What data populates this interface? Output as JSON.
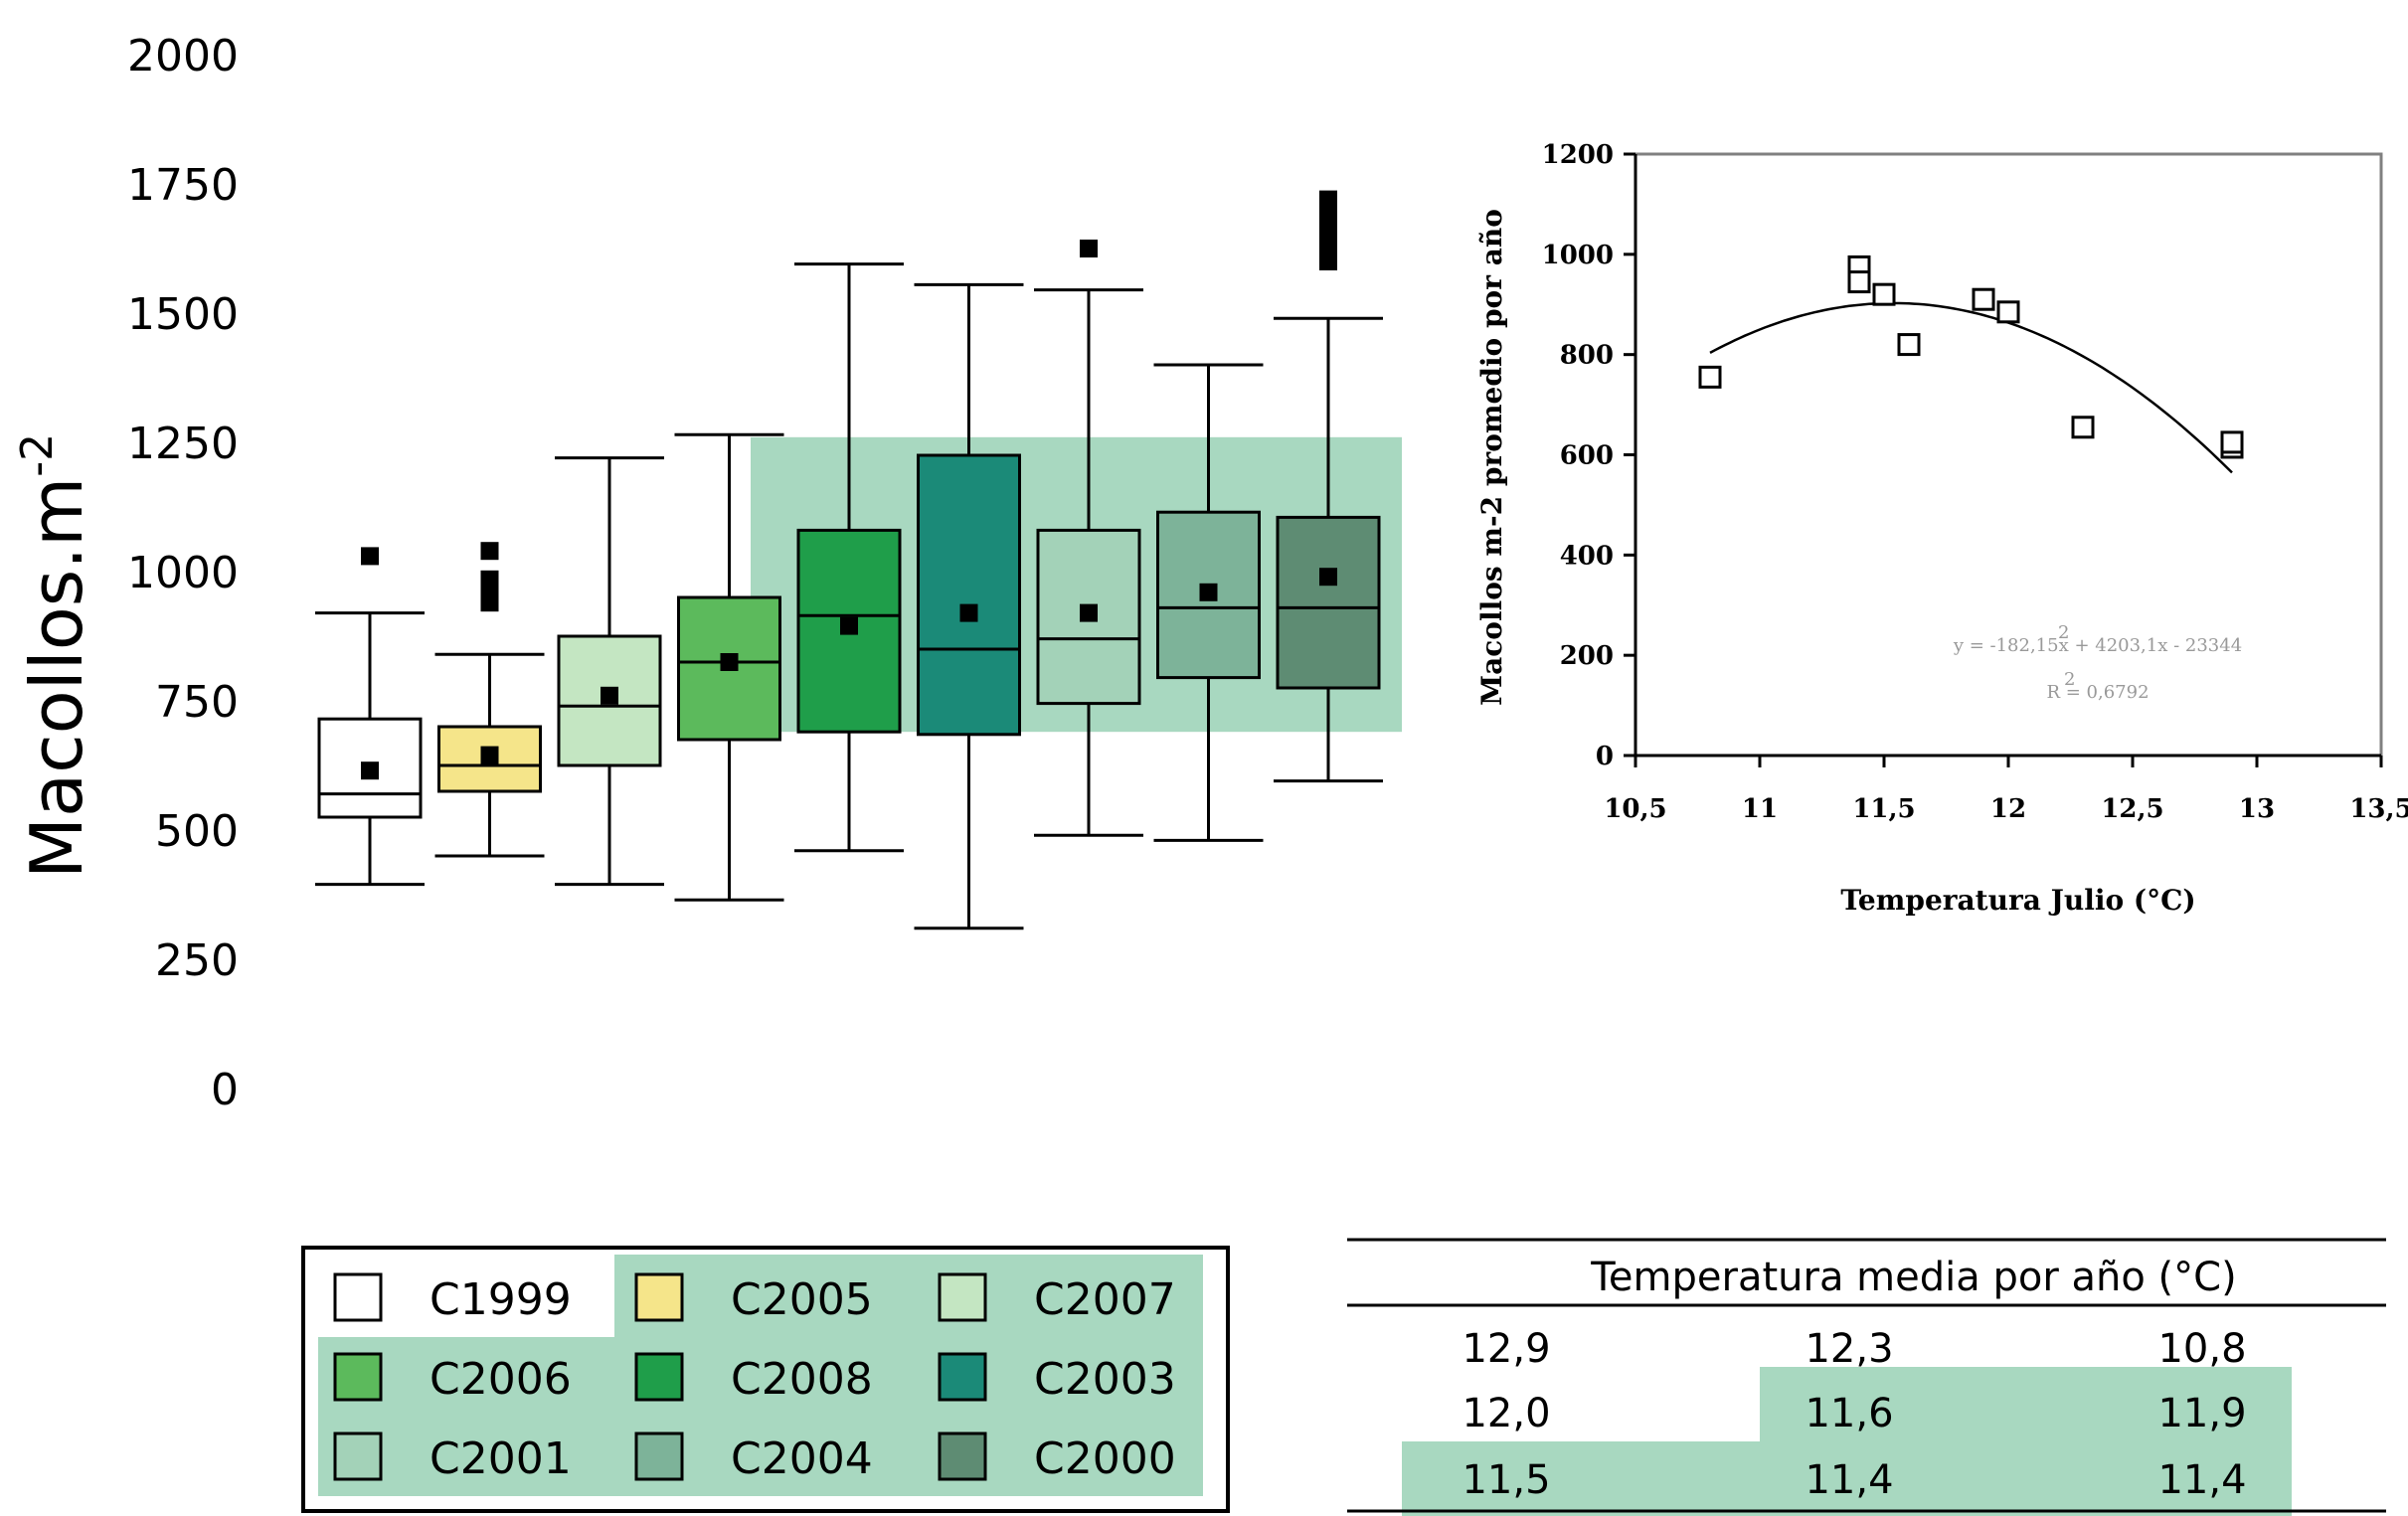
{
  "chart_data": [
    {
      "type": "box",
      "ylabel": "Macollos.m-2",
      "ylabel_main": "Macollos.m",
      "ylabel_sup": "-2",
      "ylim": [
        0,
        2000
      ],
      "yticks": [
        "0",
        "250",
        "500",
        "750",
        "1000",
        "1250",
        "1500",
        "1750",
        "2000"
      ],
      "grid": false,
      "highlight_range": [
        690,
        1260
      ],
      "boxes": [
        {
          "name": "C1999",
          "color": "#ffffff",
          "whisker_low": 395,
          "q1": 525,
          "median": 570,
          "q3": 715,
          "whisker_high": 920,
          "mean": 615,
          "outliers": [
            1030
          ]
        },
        {
          "name": "C2005",
          "color": "#f5e58a",
          "whisker_low": 450,
          "q1": 575,
          "median": 625,
          "q3": 700,
          "whisker_high": 840,
          "mean": 645,
          "outliers": [
            940,
            965,
            985,
            1040
          ]
        },
        {
          "name": "C2007",
          "color": "#c4e6c2",
          "whisker_low": 395,
          "q1": 625,
          "median": 740,
          "q3": 875,
          "whisker_high": 1220,
          "mean": 760,
          "outliers": []
        },
        {
          "name": "C2006",
          "color": "#5cba5c",
          "whisker_low": 365,
          "q1": 675,
          "median": 825,
          "q3": 950,
          "whisker_high": 1265,
          "mean": 825,
          "outliers": []
        },
        {
          "name": "C2008",
          "color": "#1f9e4a",
          "whisker_low": 460,
          "q1": 690,
          "median": 915,
          "q3": 1080,
          "whisker_high": 1595,
          "mean": 895,
          "outliers": []
        },
        {
          "name": "C2003",
          "color": "#1b8a78",
          "whisker_low": 310,
          "q1": 685,
          "median": 850,
          "q3": 1225,
          "whisker_high": 1555,
          "mean": 920,
          "outliers": []
        },
        {
          "name": "C2001",
          "color": "#a3d2b8",
          "whisker_low": 490,
          "q1": 745,
          "median": 870,
          "q3": 1080,
          "whisker_high": 1545,
          "mean": 920,
          "outliers": [
            1625
          ]
        },
        {
          "name": "C2004",
          "color": "#7db399",
          "whisker_low": 480,
          "q1": 795,
          "median": 930,
          "q3": 1115,
          "whisker_high": 1400,
          "mean": 960,
          "outliers": []
        },
        {
          "name": "C2000",
          "color": "#5e8c73",
          "whisker_low": 595,
          "q1": 775,
          "median": 930,
          "q3": 1105,
          "whisker_high": 1490,
          "mean": 990,
          "outliers": [
            1600,
            1630,
            1660,
            1690,
            1720
          ]
        }
      ]
    },
    {
      "type": "scatter",
      "xlabel": "Temperatura Julio (°C)",
      "ylabel": "Macollos m-2 promedio por año",
      "xlim": [
        10.5,
        13.5
      ],
      "ylim": [
        0,
        1200
      ],
      "xticks": [
        "10,5",
        "11",
        "11,5",
        "12",
        "12,5",
        "13",
        "13,5"
      ],
      "yticks": [
        "0",
        "200",
        "400",
        "600",
        "800",
        "1000",
        "1200"
      ],
      "points": [
        {
          "x": 10.8,
          "y": 755
        },
        {
          "x": 11.4,
          "y": 975
        },
        {
          "x": 11.4,
          "y": 945
        },
        {
          "x": 11.5,
          "y": 920
        },
        {
          "x": 11.6,
          "y": 820
        },
        {
          "x": 11.9,
          "y": 910
        },
        {
          "x": 12.0,
          "y": 885
        },
        {
          "x": 12.3,
          "y": 655
        },
        {
          "x": 12.9,
          "y": 615
        },
        {
          "x": 12.9,
          "y": 625
        }
      ],
      "fit": {
        "type": "poly2",
        "a": -182.15,
        "b": 4203.1,
        "c": -23344
      },
      "equation": "y = -182,15x  + 4203,1x - 23344",
      "equation_sup": "2",
      "r2_label": "R  = 0,6792",
      "r2_sup": "2"
    }
  ],
  "legend": {
    "items": [
      {
        "label": "C1999",
        "color": "#ffffff"
      },
      {
        "label": "C2005",
        "color": "#f5e58a"
      },
      {
        "label": "C2007",
        "color": "#c4e6c2"
      },
      {
        "label": "C2006",
        "color": "#5cba5c"
      },
      {
        "label": "C2008",
        "color": "#1f9e4a"
      },
      {
        "label": "C2003",
        "color": "#1b8a78"
      },
      {
        "label": "C2001",
        "color": "#a3d2b8"
      },
      {
        "label": "C2004",
        "color": "#7db399"
      },
      {
        "label": "C2000",
        "color": "#5e8c73"
      }
    ]
  },
  "temp_table": {
    "header": "Temperatura media por año (°C)",
    "rows": [
      [
        "12,9",
        "12,3",
        "10,8"
      ],
      [
        "12,0",
        "11,6",
        "11,9"
      ],
      [
        "11,5",
        "11,4",
        "11,4"
      ]
    ]
  },
  "colors": {
    "highlight": "#a8d8c0",
    "axis": "#000000",
    "scatter_frame": "#808080"
  }
}
